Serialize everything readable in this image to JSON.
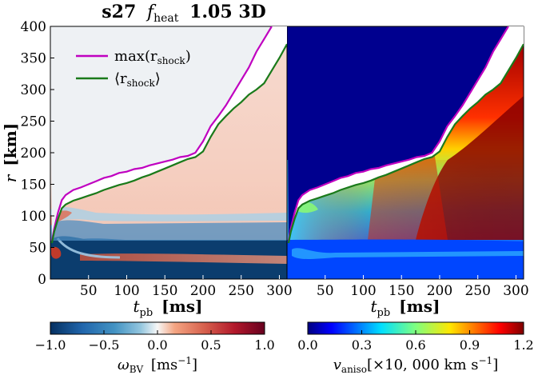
{
  "chart_data": {
    "type": "heatmap",
    "title": "s27 f_heat 1.05 3D",
    "title_parts": {
      "prefix": "s27",
      "f": "f",
      "sub": "heat",
      "suffix": "1.05 3D"
    },
    "ylabel": {
      "main": "r",
      "unit": "[km]"
    },
    "xlabel": {
      "main": "t",
      "sub": "pb",
      "unit": "[ms]"
    },
    "xlim": [
      0,
      310
    ],
    "ylim": [
      0,
      400
    ],
    "grid": false,
    "legend_position": "top-left",
    "y_ticks": [
      "0",
      "50",
      "100",
      "150",
      "200",
      "250",
      "300",
      "350",
      "400"
    ],
    "y_tick_values": [
      0,
      50,
      100,
      150,
      200,
      250,
      300,
      350,
      400
    ],
    "x_ticks": [
      "50",
      "100",
      "150",
      "200",
      "250",
      "300"
    ],
    "x_tick_values": [
      50,
      100,
      150,
      200,
      250,
      300
    ],
    "panels": [
      {
        "name": "omega_BV",
        "colormap": "RdBu_r",
        "colorbar": {
          "label_main": "ω",
          "label_sub": "BV",
          "label_unit": "[ms",
          "label_exp": "−1",
          "label_close": "]",
          "ticks": [
            "−1.0",
            "−0.5",
            "0.0",
            "0.5",
            "1.0"
          ],
          "tick_values": [
            -1.0,
            -0.5,
            0.0,
            0.5,
            1.0
          ],
          "range": [
            -1.0,
            1.0
          ]
        }
      },
      {
        "name": "v_aniso",
        "colormap": "jet",
        "colorbar": {
          "label_main": "v",
          "label_sub": "aniso",
          "label_unit": "[×10, 000 km s",
          "label_exp": "−1",
          "label_close": "]",
          "ticks": [
            "0.0",
            "0.3",
            "0.6",
            "0.9",
            "1.2"
          ],
          "tick_values": [
            0.0,
            0.3,
            0.6,
            0.9,
            1.2
          ],
          "range": [
            0.0,
            1.2
          ]
        }
      }
    ],
    "series": [
      {
        "name": "max(r_shock)",
        "label_main": "max(r",
        "label_sub": "shock",
        "label_close": ")",
        "color": "#c000c0",
        "x": [
          2,
          5,
          10,
          15,
          20,
          30,
          40,
          50,
          60,
          70,
          80,
          90,
          100,
          110,
          120,
          130,
          140,
          150,
          160,
          170,
          180,
          190,
          200,
          210,
          220,
          230,
          240,
          250,
          260,
          270,
          280,
          290
        ],
        "y": [
          60,
          80,
          105,
          125,
          133,
          141,
          145,
          150,
          155,
          160,
          163,
          168,
          170,
          174,
          176,
          180,
          183,
          186,
          189,
          193,
          195,
          200,
          218,
          242,
          258,
          275,
          295,
          315,
          335,
          360,
          380,
          400
        ]
      },
      {
        "name": "⟨r_shock⟩",
        "label_main": "⟨r",
        "label_sub": "shock",
        "label_close": "⟩",
        "color": "#1a7a1a",
        "x": [
          2,
          5,
          10,
          15,
          20,
          30,
          40,
          50,
          60,
          70,
          80,
          90,
          100,
          110,
          120,
          130,
          140,
          150,
          160,
          170,
          180,
          190,
          200,
          210,
          220,
          230,
          240,
          250,
          260,
          270,
          280,
          290,
          300,
          310
        ],
        "y": [
          57,
          75,
          95,
          112,
          118,
          124,
          128,
          132,
          136,
          141,
          145,
          149,
          152,
          156,
          161,
          165,
          170,
          175,
          180,
          185,
          190,
          193,
          202,
          225,
          245,
          258,
          270,
          280,
          292,
          300,
          310,
          330,
          350,
          372
        ]
      }
    ]
  },
  "colors": {
    "neg": "#0b3d6e",
    "zero": "#f2f4f6",
    "pos": "#d7563d",
    "jet_low": "#00008f",
    "jet_high": "#800000",
    "legend_max": "#c000c0",
    "legend_mean": "#1a7a1a"
  }
}
